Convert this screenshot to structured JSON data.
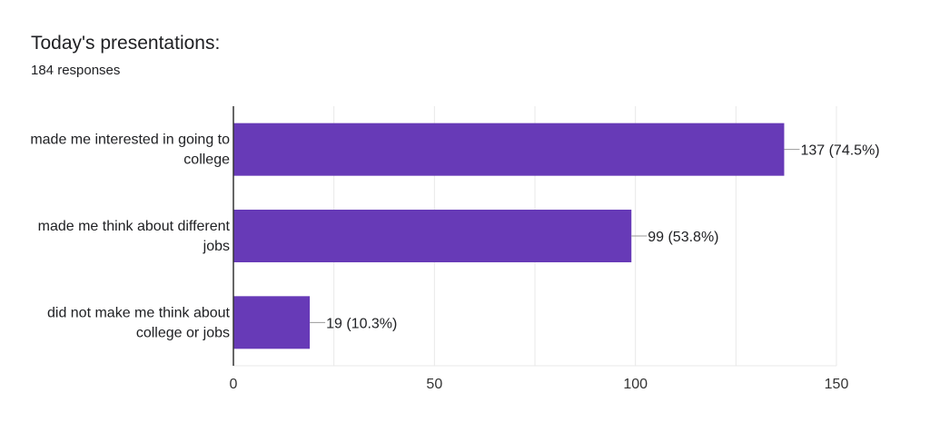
{
  "form": {
    "question_title": "Today's presentations:",
    "response_count": "184 responses"
  },
  "chart_data": {
    "type": "bar",
    "orientation": "horizontal",
    "categories": [
      [
        "made me interested in going to",
        "college"
      ],
      [
        "made me think about different",
        "jobs"
      ],
      [
        "did not make me think about",
        "college or jobs"
      ]
    ],
    "values": [
      137,
      99,
      19
    ],
    "data_labels": [
      "137 (74.5%)",
      "99 (53.8%)",
      "19 (10.3%)"
    ],
    "xlim": [
      0,
      150
    ],
    "x_ticks": [
      0,
      50,
      100,
      150
    ],
    "grid": true,
    "colors": {
      "bar": "#673ab7",
      "grid": "#e8e8e8",
      "axis": "#333333",
      "text": "#202124"
    }
  }
}
